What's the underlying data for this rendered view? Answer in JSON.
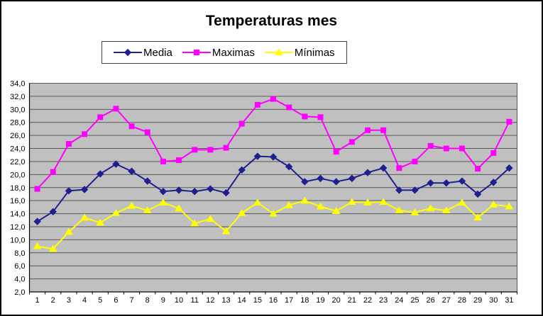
{
  "chart_data": {
    "type": "line",
    "title": "Temperaturas mes",
    "xlabel": "",
    "ylabel": "",
    "categories": [
      "1",
      "2",
      "3",
      "4",
      "5",
      "6",
      "7",
      "8",
      "9",
      "10",
      "11",
      "12",
      "13",
      "14",
      "15",
      "16",
      "17",
      "18",
      "19",
      "20",
      "21",
      "22",
      "23",
      "24",
      "25",
      "26",
      "27",
      "28",
      "29",
      "30",
      "31"
    ],
    "series": [
      {
        "name": "Media",
        "color": "#1F1F8F",
        "marker": "diamond",
        "values": [
          12.8,
          14.3,
          17.5,
          17.7,
          20.1,
          21.6,
          20.5,
          19.0,
          17.4,
          17.6,
          17.4,
          17.8,
          17.2,
          20.7,
          22.8,
          22.7,
          21.2,
          18.9,
          19.4,
          18.9,
          19.4,
          20.3,
          21.0,
          17.6,
          17.6,
          18.7,
          18.7,
          19.0,
          17.0,
          18.8,
          21.0
        ]
      },
      {
        "name": "Maximas",
        "color": "#FF00FF",
        "marker": "square",
        "values": [
          17.8,
          20.4,
          24.7,
          26.2,
          28.8,
          30.1,
          27.4,
          26.5,
          22.0,
          22.2,
          23.8,
          23.8,
          24.1,
          27.8,
          30.7,
          31.6,
          30.3,
          28.9,
          28.8,
          23.5,
          25.0,
          26.8,
          26.8,
          21.0,
          22.0,
          24.4,
          24.0,
          24.0,
          20.9,
          23.3,
          28.1
        ]
      },
      {
        "name": "Mínimas",
        "color": "#FFFF00",
        "marker": "triangle",
        "values": [
          9.0,
          8.6,
          11.2,
          13.4,
          12.6,
          14.1,
          15.2,
          14.5,
          15.7,
          14.8,
          12.5,
          13.2,
          11.3,
          14.1,
          15.7,
          14.0,
          15.3,
          16.0,
          15.1,
          14.4,
          15.8,
          15.7,
          15.8,
          14.5,
          14.2,
          14.8,
          14.5,
          15.7,
          13.4,
          15.4,
          15.1
        ]
      }
    ],
    "ylim": [
      2,
      34
    ],
    "y_tick_step": 2,
    "y_tick_labels": [
      "2,0",
      "4,0",
      "6,0",
      "8,0",
      "10,0",
      "12,0",
      "14,0",
      "16,0",
      "18,0",
      "20,0",
      "22,0",
      "24,0",
      "26,0",
      "28,0",
      "30,0",
      "32,0",
      "34,0"
    ],
    "grid": "horizontal-only",
    "legend_position": "top",
    "plot_bg_color": "#C0C0C0",
    "gridline_color": "#595959",
    "axis_color": "#000000",
    "text_color": "#000000"
  }
}
